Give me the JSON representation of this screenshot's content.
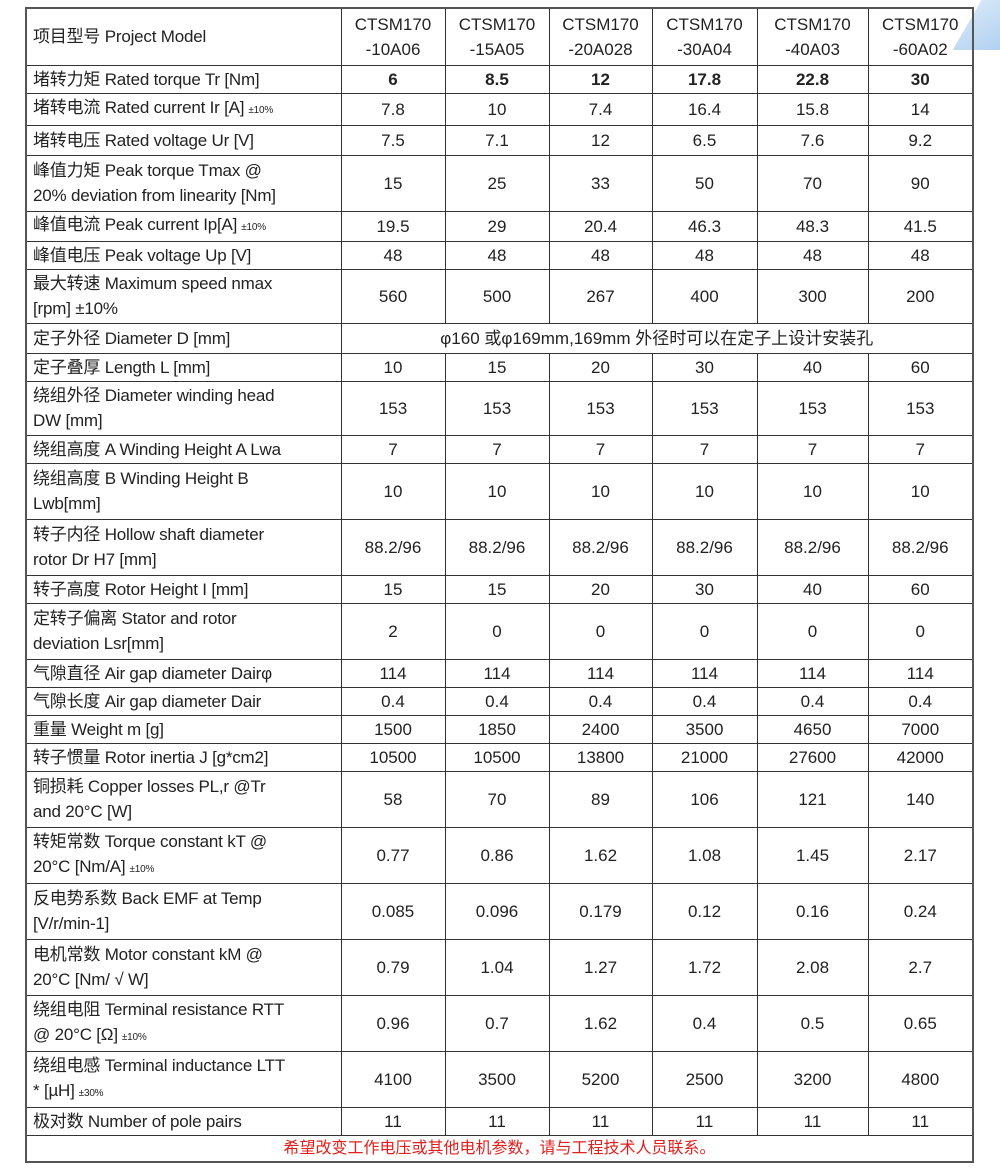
{
  "header": {
    "label": "项目型号 Project Model",
    "models": [
      "CTSM170\n-10A06",
      "CTSM170\n-15A05",
      "CTSM170\n-20A028",
      "CTSM170\n-30A04",
      "CTSM170\n-40A03",
      "CTSM170\n-60A02"
    ]
  },
  "rows": [
    {
      "label": "堵转力矩 Rated torque Tr   [Nm]",
      "values": [
        "6",
        "8.5",
        "12",
        "17.8",
        "22.8",
        "30"
      ],
      "bold": true
    },
    {
      "label": "堵转电流 Rated current Ir [A]",
      "note": "±10%",
      "values": [
        "7.8",
        "10",
        "7.4",
        "16.4",
        "15.8",
        "14"
      ]
    },
    {
      "label": "堵转电压 Rated voltage Ur [V]",
      "values": [
        "7.5",
        "7.1",
        "12",
        "6.5",
        "7.6",
        "9.2"
      ]
    },
    {
      "label": "峰值力矩 Peak torque Tmax @\n20% deviation from linearity [Nm]",
      "values": [
        "15",
        "25",
        "33",
        "50",
        "70",
        "90"
      ]
    },
    {
      "label": "峰值电流 Peak current Ip[A]",
      "note": "±10%",
      "values": [
        "19.5",
        "29",
        "20.4",
        "46.3",
        "48.3",
        "41.5"
      ]
    },
    {
      "label": "峰值电压 Peak voltage Up [V]",
      "values": [
        "48",
        "48",
        "48",
        "48",
        "48",
        "48"
      ]
    },
    {
      "label": "最大转速  Maximum speed nmax\n[rpm] ±10%",
      "values": [
        "560",
        "500",
        "267",
        "400",
        "300",
        "200"
      ]
    },
    {
      "label": "定子外径 Diameter D [mm]",
      "span": "φ160 或φ169mm,169mm 外径时可以在定子上设计安装孔"
    },
    {
      "label": "定子叠厚 Length L [mm]",
      "values": [
        "10",
        "15",
        "20",
        "30",
        "40",
        "60"
      ]
    },
    {
      "label": "绕组外径 Diameter winding head\nDW [mm]",
      "values": [
        "153",
        "153",
        "153",
        "153",
        "153",
        "153"
      ]
    },
    {
      "label": "绕组高度 A Winding Height A Lwa",
      "values": [
        "7",
        "7",
        "7",
        "7",
        "7",
        "7"
      ]
    },
    {
      "label": "绕组高度 B Winding Height B\nLwb[mm]",
      "values": [
        "10",
        "10",
        "10",
        "10",
        "10",
        "10"
      ]
    },
    {
      "label": "转子内径 Hollow shaft diameter\nrotor Dr H7 [mm]",
      "values": [
        "88.2/96",
        "88.2/96",
        "88.2/96",
        "88.2/96",
        "88.2/96",
        "88.2/96"
      ]
    },
    {
      "label": "转子高度 Rotor Height I [mm]",
      "values": [
        "15",
        "15",
        "20",
        "30",
        "40",
        "60"
      ]
    },
    {
      "label": "定转子偏离 Stator and rotor\ndeviation Lsr[mm]",
      "values": [
        "2",
        "0",
        "0",
        "0",
        "0",
        "0"
      ]
    },
    {
      "label": "气隙直径  Air gap diameter Dairφ",
      "values": [
        "114",
        "114",
        "114",
        "114",
        "114",
        "114"
      ]
    },
    {
      "label": "气隙长度  Air gap diameter Dair",
      "values": [
        "0.4",
        "0.4",
        "0.4",
        "0.4",
        "0.4",
        "0.4"
      ]
    },
    {
      "label": "重量 Weight m [g]",
      "values": [
        "1500",
        "1850",
        "2400",
        "3500",
        "4650",
        "7000"
      ]
    },
    {
      "label": "转子惯量 Rotor inertia J [g*cm2]",
      "values": [
        "10500",
        "10500",
        "13800",
        "21000",
        "27600",
        "42000"
      ]
    },
    {
      "label": "铜损耗 Copper losses PL,r @Tr\nand 20°C [W]",
      "values": [
        "58",
        "70",
        "89",
        "106",
        "121",
        "140"
      ]
    },
    {
      "label": "转矩常数 Torque constant kT @\n20°C [Nm/A]",
      "note": "±10%",
      "values": [
        "0.77",
        "0.86",
        "1.62",
        "1.08",
        "1.45",
        "2.17"
      ]
    },
    {
      "label": "反电势系数 Back EMF at Temp\n[V/r/min-1]",
      "values": [
        "0.085",
        "0.096",
        "0.179",
        "0.12",
        "0.16",
        "0.24"
      ]
    },
    {
      "label": "电机常数 Motor constant kM @\n20°C [Nm/ √ W]",
      "values": [
        "0.79",
        "1.04",
        "1.27",
        "1.72",
        "2.08",
        "2.7"
      ]
    },
    {
      "label": "绕组电阻 Terminal resistance RTT\n@ 20°C [Ω]",
      "note": "±10%",
      "values": [
        "0.96",
        "0.7",
        "1.62",
        "0.4",
        "0.5",
        "0.65"
      ]
    },
    {
      "label": "绕组电感 Terminal inductance LTT\n* [µH]",
      "note": "±30%",
      "values": [
        "4100",
        "3500",
        "5200",
        "2500",
        "3200",
        "4800"
      ]
    },
    {
      "label": "极对数 Number of pole pairs",
      "values": [
        "11",
        "11",
        "11",
        "11",
        "11",
        "11"
      ]
    }
  ],
  "footer": "希望改变工作电压或其他电机参数，请与工程技术人员联系。"
}
